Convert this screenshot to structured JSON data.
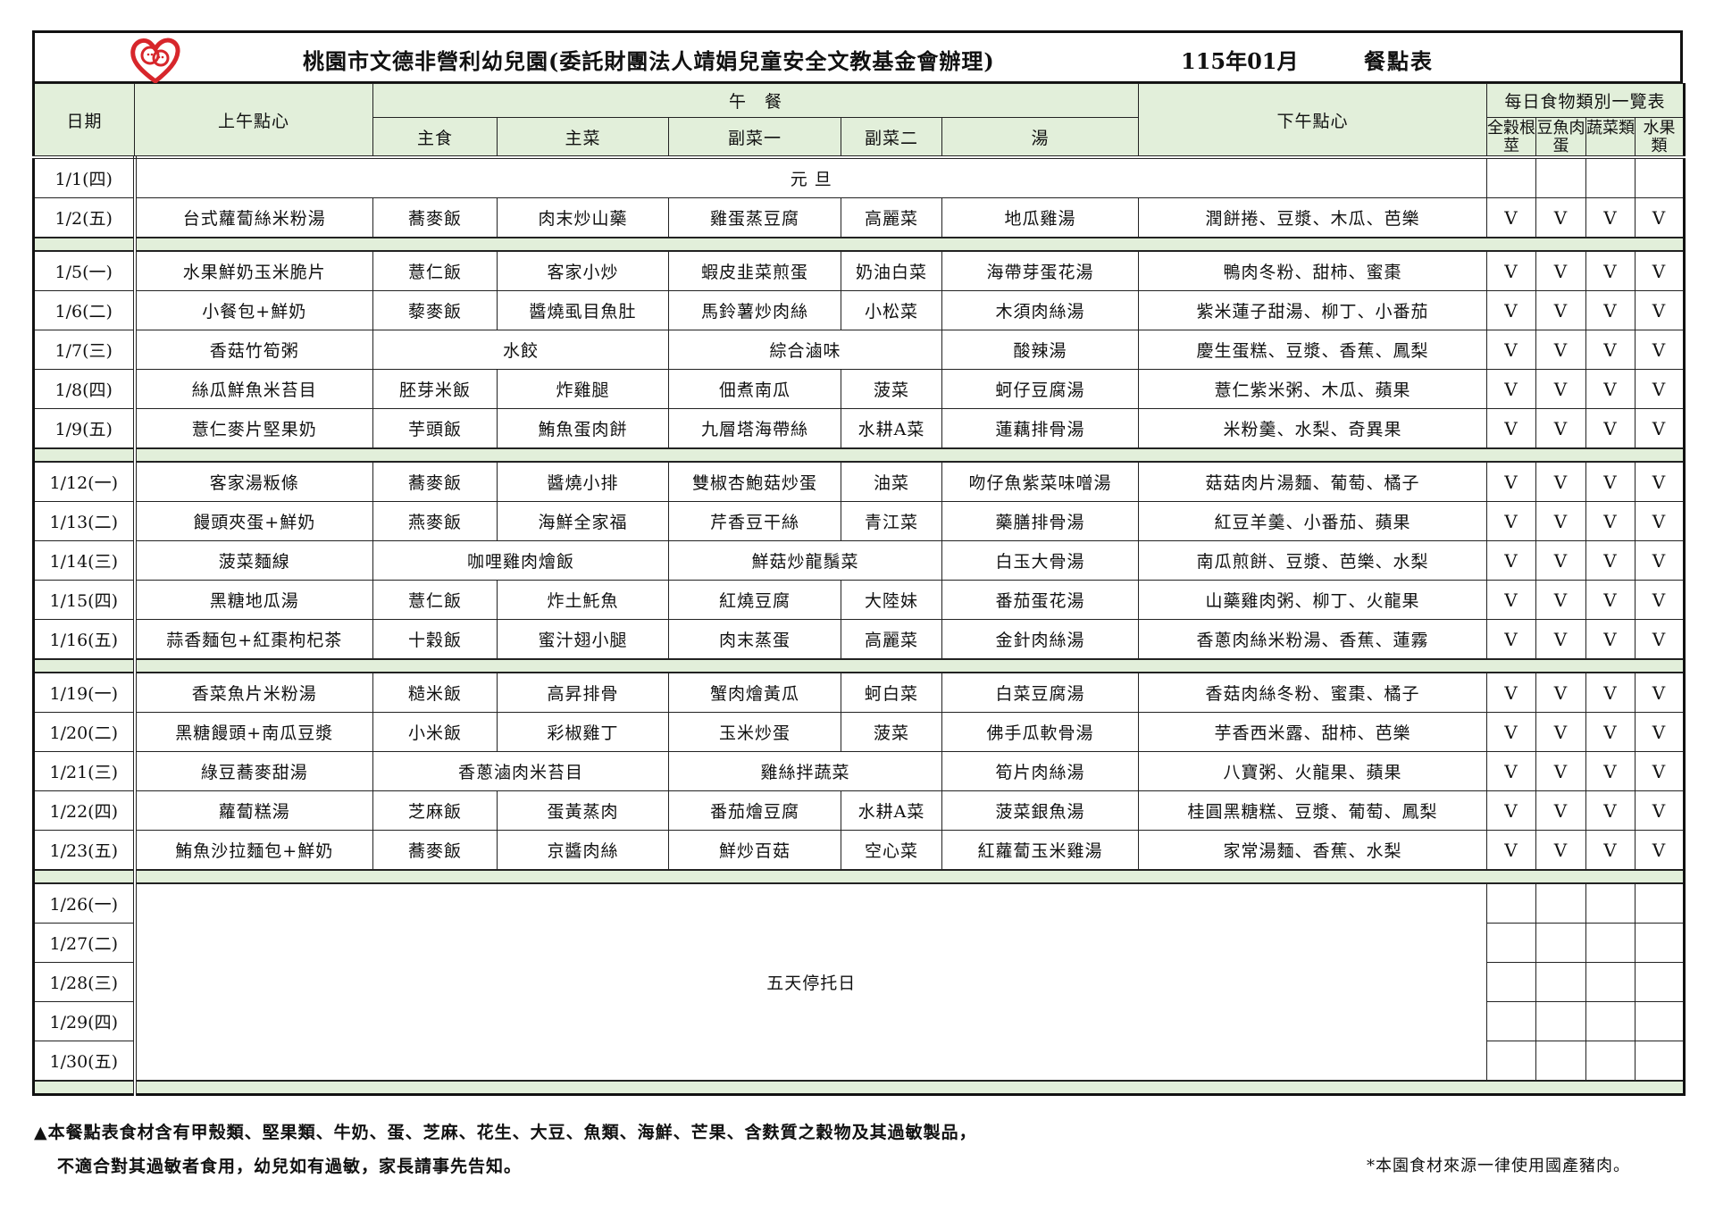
{
  "header": {
    "title": "桃園市文德非營利幼兒園(委託財團法人靖娟兒童安全文教基金會辦理)",
    "month": "115年01月",
    "doc_title": "餐點表",
    "logo_icon": "heart-face-logo",
    "accent_color": "#d7262b",
    "header_bg": "#e2efda"
  },
  "columns": {
    "date": "日期",
    "am_snack": "上午點心",
    "lunch": "午　餐",
    "staple": "主食",
    "main": "主菜",
    "side1": "副菜一",
    "side2": "副菜二",
    "soup": "湯",
    "pm_snack": "下午點心",
    "categories_title": "每日食物類別一覽表",
    "cat_grain": "全穀根莖",
    "cat_protein": "豆魚肉蛋",
    "cat_veg": "蔬菜類",
    "cat_fruit": "水果類"
  },
  "weeks": [
    {
      "days": [
        {
          "date": "1/1(四)",
          "note": "元 旦"
        },
        {
          "date": "1/2(五)",
          "am": "台式蘿蔔絲米粉湯",
          "staple": "蕎麥飯",
          "main": "肉末炒山藥",
          "side1": "雞蛋蒸豆腐",
          "side2": "高麗菜",
          "soup": "地瓜雞湯",
          "pm": "潤餅捲、豆漿、木瓜、芭樂",
          "checks": [
            "V",
            "V",
            "V",
            "V"
          ]
        }
      ]
    },
    {
      "days": [
        {
          "date": "1/5(一)",
          "am": "水果鮮奶玉米脆片",
          "staple": "薏仁飯",
          "main": "客家小炒",
          "side1": "蝦皮韭菜煎蛋",
          "side2": "奶油白菜",
          "soup": "海帶芽蛋花湯",
          "pm": "鴨肉冬粉、甜柿、蜜棗",
          "checks": [
            "V",
            "V",
            "V",
            "V"
          ]
        },
        {
          "date": "1/6(二)",
          "am": "小餐包+鮮奶",
          "staple": "藜麥飯",
          "main": "醬燒虱目魚肚",
          "side1": "馬鈴薯炒肉絲",
          "side2": "小松菜",
          "soup": "木須肉絲湯",
          "pm": "紫米蓮子甜湯、柳丁、小番茄",
          "checks": [
            "V",
            "V",
            "V",
            "V"
          ]
        },
        {
          "date": "1/7(三)",
          "am": "香菇竹筍粥",
          "staple_main": "水餃",
          "side12": "綜合滷味",
          "soup": "酸辣湯",
          "pm": "慶生蛋糕、豆漿、香蕉、鳳梨",
          "checks": [
            "V",
            "V",
            "V",
            "V"
          ]
        },
        {
          "date": "1/8(四)",
          "am": "絲瓜鮮魚米苔目",
          "staple": "胚芽米飯",
          "main": "炸雞腿",
          "side1": "佃煮南瓜",
          "side2": "菠菜",
          "soup": "蚵仔豆腐湯",
          "pm": "薏仁紫米粥、木瓜、蘋果",
          "checks": [
            "V",
            "V",
            "V",
            "V"
          ]
        },
        {
          "date": "1/9(五)",
          "am": "薏仁麥片堅果奶",
          "staple": "芋頭飯",
          "main": "鮪魚蛋肉餅",
          "side1": "九層塔海帶絲",
          "side2": "水耕A菜",
          "soup": "蓮藕排骨湯",
          "pm": "米粉羹、水梨、奇異果",
          "checks": [
            "V",
            "V",
            "V",
            "V"
          ]
        }
      ]
    },
    {
      "days": [
        {
          "date": "1/12(一)",
          "am": "客家湯粄條",
          "staple": "蕎麥飯",
          "main": "醬燒小排",
          "side1": "雙椒杏鮑菇炒蛋",
          "side2": "油菜",
          "soup": "吻仔魚紫菜味噌湯",
          "pm": "菇菇肉片湯麵、葡萄、橘子",
          "checks": [
            "V",
            "V",
            "V",
            "V"
          ]
        },
        {
          "date": "1/13(二)",
          "am": "饅頭夾蛋+鮮奶",
          "staple": "燕麥飯",
          "main": "海鮮全家福",
          "side1": "芹香豆干絲",
          "side2": "青江菜",
          "soup": "藥膳排骨湯",
          "pm": "紅豆羊羹、小番茄、蘋果",
          "checks": [
            "V",
            "V",
            "V",
            "V"
          ]
        },
        {
          "date": "1/14(三)",
          "am": "菠菜麵線",
          "staple_main": "咖哩雞肉燴飯",
          "side12": "鮮菇炒龍鬚菜",
          "soup": "白玉大骨湯",
          "pm": "南瓜煎餅、豆漿、芭樂、水梨",
          "checks": [
            "V",
            "V",
            "V",
            "V"
          ]
        },
        {
          "date": "1/15(四)",
          "am": "黑糖地瓜湯",
          "staple": "薏仁飯",
          "main": "炸土魠魚",
          "side1": "紅燒豆腐",
          "side2": "大陸妹",
          "soup": "番茄蛋花湯",
          "pm": "山藥雞肉粥、柳丁、火龍果",
          "checks": [
            "V",
            "V",
            "V",
            "V"
          ]
        },
        {
          "date": "1/16(五)",
          "am": "蒜香麵包+紅棗枸杞茶",
          "staple": "十穀飯",
          "main": "蜜汁翅小腿",
          "side1": "肉末蒸蛋",
          "side2": "高麗菜",
          "soup": "金針肉絲湯",
          "pm": "香蔥肉絲米粉湯、香蕉、蓮霧",
          "checks": [
            "V",
            "V",
            "V",
            "V"
          ]
        }
      ]
    },
    {
      "days": [
        {
          "date": "1/19(一)",
          "am": "香菜魚片米粉湯",
          "staple": "糙米飯",
          "main": "高昇排骨",
          "side1": "蟹肉燴黃瓜",
          "side2": "蚵白菜",
          "soup": "白菜豆腐湯",
          "pm": "香菇肉絲冬粉、蜜棗、橘子",
          "checks": [
            "V",
            "V",
            "V",
            "V"
          ]
        },
        {
          "date": "1/20(二)",
          "am": "黑糖饅頭+南瓜豆漿",
          "staple": "小米飯",
          "main": "彩椒雞丁",
          "side1": "玉米炒蛋",
          "side2": "菠菜",
          "soup": "佛手瓜軟骨湯",
          "pm": "芋香西米露、甜柿、芭樂",
          "checks": [
            "V",
            "V",
            "V",
            "V"
          ]
        },
        {
          "date": "1/21(三)",
          "am": "綠豆蕎麥甜湯",
          "staple_main": "香蔥滷肉米苔目",
          "side12": "雞絲拌蔬菜",
          "soup": "筍片肉絲湯",
          "pm": "八寶粥、火龍果、蘋果",
          "checks": [
            "V",
            "V",
            "V",
            "V"
          ]
        },
        {
          "date": "1/22(四)",
          "am": "蘿蔔糕湯",
          "staple": "芝麻飯",
          "main": "蛋黃蒸肉",
          "side1": "番茄燴豆腐",
          "side2": "水耕A菜",
          "soup": "菠菜銀魚湯",
          "pm": "桂圓黑糖糕、豆漿、葡萄、鳳梨",
          "checks": [
            "V",
            "V",
            "V",
            "V"
          ]
        },
        {
          "date": "1/23(五)",
          "am": "鮪魚沙拉麵包+鮮奶",
          "staple": "蕎麥飯",
          "main": "京醬肉絲",
          "side1": "鮮炒百菇",
          "side2": "空心菜",
          "soup": "紅蘿蔔玉米雞湯",
          "pm": "家常湯麵、香蕉、水梨",
          "checks": [
            "V",
            "V",
            "V",
            "V"
          ]
        }
      ]
    },
    {
      "closed_note": "五天停托日",
      "days": [
        {
          "date": "1/26(一)"
        },
        {
          "date": "1/27(二)"
        },
        {
          "date": "1/28(三)"
        },
        {
          "date": "1/29(四)"
        },
        {
          "date": "1/30(五)"
        }
      ]
    }
  ],
  "footer": {
    "allergy_line1": "▲本餐點表食材含有甲殼類、堅果類、牛奶、蛋、芝麻、花生、大豆、魚類、海鮮、芒果、含麩質之穀物及其過敏製品，",
    "allergy_line2": "不適合對其過敏者食用，幼兒如有過敏，家長請事先告知。",
    "pork_note": "*本園食材來源一律使用國產豬肉。"
  }
}
